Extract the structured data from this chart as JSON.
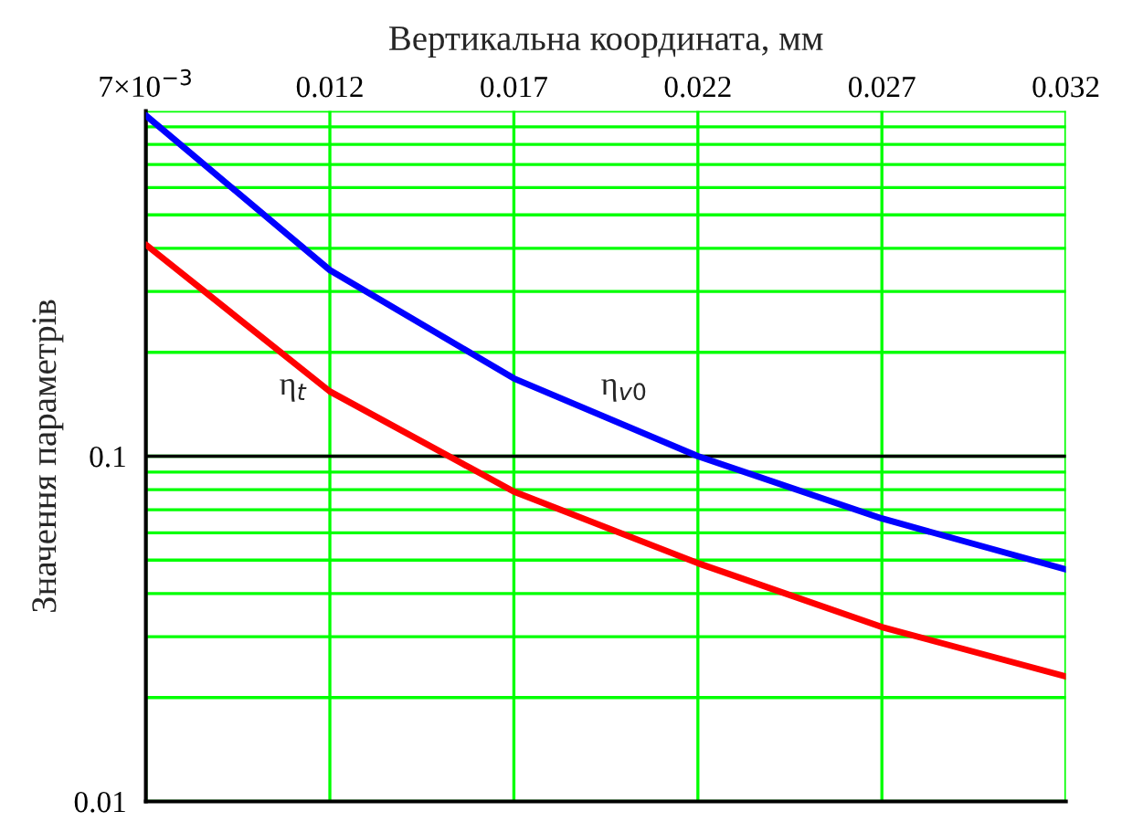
{
  "chart_data": {
    "type": "line",
    "xlabel": "Вертикальна координата, мм",
    "ylabel": "Значення параметрів",
    "log": "y",
    "grid": true,
    "legend": false,
    "marker": "none",
    "line_style": "solid",
    "xlim": [
      0.007,
      0.032
    ],
    "ylim": [
      0.01,
      1
    ],
    "xticks": [
      {
        "value": 0.007,
        "label": "7×10$^{−3}$"
      },
      0.012,
      0.017,
      0.022,
      0.027,
      0.032
    ],
    "yticks": [
      0.01,
      0.1,
      {
        "value": 1,
        "label": null
      }
    ],
    "ref_lines": [
      {
        "axis": "y",
        "value": 0.1,
        "color": "#000000"
      }
    ],
    "x": [
      0.007,
      0.012,
      0.017,
      0.022,
      0.027,
      0.032
    ],
    "series": [
      {
        "color": "#0000ff",
        "values": [
          0.97,
          0.346,
          0.168,
          0.1,
          0.066,
          0.047
        ]
      },
      {
        "color": "#ff0000",
        "values": [
          0.41,
          0.154,
          0.079,
          0.049,
          0.032,
          0.023
        ]
      }
    ],
    "annotations": [
      "η$_{t}$",
      "η$_{v0}$"
    ]
  }
}
